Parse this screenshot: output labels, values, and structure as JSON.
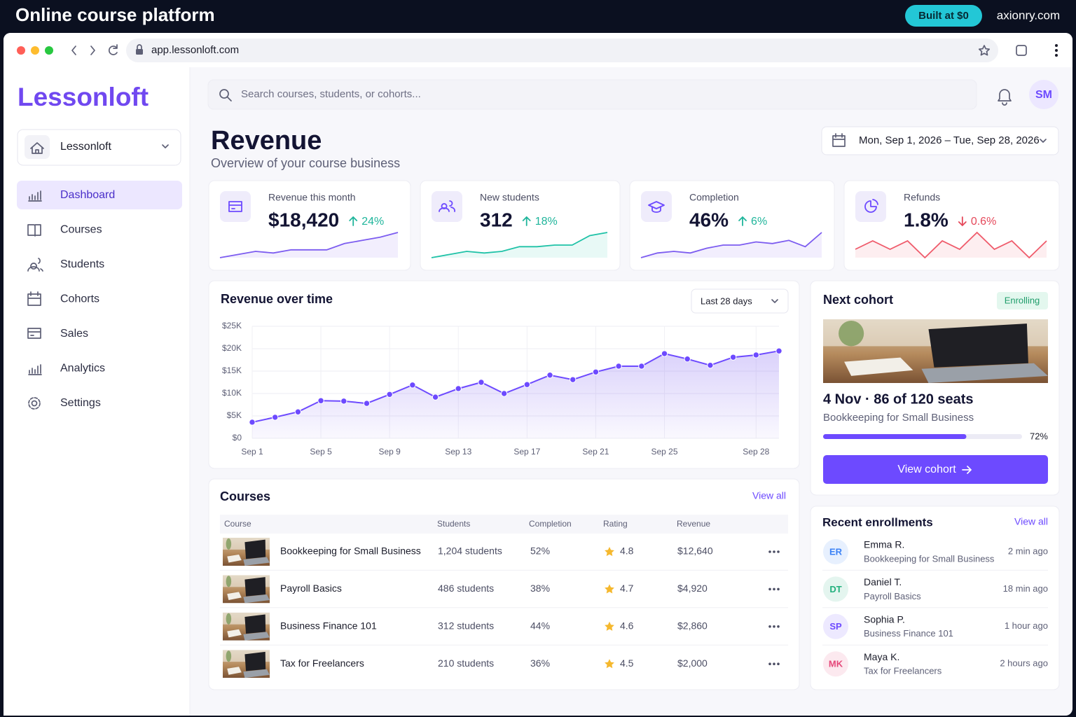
{
  "banner": {
    "title": "Online course platform",
    "badge": "Built at $0",
    "site": "axionry.com"
  },
  "browser": {
    "url": "app.lessonloft.com"
  },
  "sidebar": {
    "brand": "Lessonloft",
    "workspace": "Lessonloft",
    "nav": [
      "Dashboard",
      "Courses",
      "Students",
      "Cohorts",
      "Sales",
      "Analytics",
      "Settings"
    ],
    "active": 0
  },
  "topbar": {
    "search_placeholder": "Search courses, students, or cohorts...",
    "avatar": "SM"
  },
  "header": {
    "title": "Revenue",
    "subtitle": "Overview of your course business",
    "date_range": "Mon, Sep 1, 2026 – Tue, Sep 28, 2026"
  },
  "kpis": [
    {
      "label": "Revenue this month",
      "value": "$18,420",
      "change": "24%",
      "direction": "up",
      "color": "#7c5cf0",
      "trend": [
        2,
        4,
        6,
        5,
        7,
        7,
        7,
        11,
        13,
        15,
        18
      ]
    },
    {
      "label": "New students",
      "value": "312",
      "change": "18%",
      "direction": "up",
      "color": "#1fc2a7",
      "trend": [
        2,
        4,
        6,
        5,
        6,
        9,
        9,
        10,
        10,
        16,
        18
      ]
    },
    {
      "label": "Completion",
      "value": "46%",
      "change": "6%",
      "direction": "up",
      "color": "#7c5cf0",
      "trend": [
        2,
        5,
        6,
        5,
        8,
        10,
        10,
        12,
        11,
        13,
        9,
        18
      ]
    },
    {
      "label": "Refunds",
      "value": "1.8%",
      "change": "0.6%",
      "direction": "down",
      "color": "#ef5b6b",
      "trend": [
        8,
        9,
        8,
        9,
        7,
        9,
        8,
        10,
        8,
        9,
        7,
        9
      ]
    }
  ],
  "chart_data": {
    "type": "line",
    "title": "Revenue over time",
    "range_select": "Last 28 days",
    "categories": [
      "Sep 1",
      null,
      null,
      "Sep 5",
      null,
      null,
      "Sep 9",
      null,
      null,
      "Sep 13",
      null,
      null,
      "Sep 17",
      null,
      null,
      "Sep 21",
      null,
      null,
      "Sep 25",
      null,
      null,
      null,
      "Sep 28",
      null
    ],
    "values": [
      3600,
      4700,
      5900,
      8400,
      8300,
      7800,
      9800,
      11900,
      9200,
      11100,
      12500,
      10000,
      12000,
      14100,
      13100,
      14800,
      16100,
      16100,
      18900,
      17700,
      16300,
      18100,
      18600,
      19500
    ],
    "color": "#6d4aff",
    "ylim": [
      0,
      25000
    ],
    "yticks": [
      {
        "value": 0,
        "label": "$0"
      },
      {
        "value": 5000,
        "label": "$5K"
      },
      {
        "value": 10000,
        "label": "$10K"
      },
      {
        "value": 15000,
        "label": "$15K"
      },
      {
        "value": 20000,
        "label": "$20K"
      },
      {
        "value": 25000,
        "label": "$25K"
      }
    ],
    "grid": true
  },
  "courses": {
    "title": "Courses",
    "view_all": "View all",
    "columns": [
      "Course",
      "Students",
      "Completion",
      "Rating",
      "Revenue"
    ],
    "rows": [
      {
        "name": "Bookkeeping for Small Business",
        "students": "1,204 students",
        "completion": "52%",
        "rating": 4.8,
        "revenue": "$12,640"
      },
      {
        "name": "Payroll Basics",
        "students": "486 students",
        "completion": "38%",
        "rating": 4.7,
        "revenue": "$4,920"
      },
      {
        "name": "Business Finance 101",
        "students": "312 students",
        "completion": "44%",
        "rating": 4.6,
        "revenue": "$2,860"
      },
      {
        "name": "Tax for Freelancers",
        "students": "210 students",
        "completion": "36%",
        "rating": 4.5,
        "revenue": "$2,000"
      }
    ]
  },
  "next_cohort": {
    "title": "Next cohort",
    "status": "Enrolling",
    "headline": "4 Nov · 86 of 120 seats",
    "course": "Bookkeeping for Small Business",
    "progress": {
      "value": 72,
      "label": "72%"
    },
    "button": "View cohort"
  },
  "enrollments": {
    "title": "Recent enrollments",
    "view_all": "View all",
    "items": [
      {
        "initials": "ER",
        "name": "Emma R.",
        "course": "Bookkeeping for Small Business",
        "time": "2 min ago",
        "color": "#3b82f6"
      },
      {
        "initials": "DT",
        "name": "Daniel T.",
        "course": "Payroll Basics",
        "time": "18 min ago",
        "color": "#22b07d"
      },
      {
        "initials": "SP",
        "name": "Sophia P.",
        "course": "Business Finance 101",
        "time": "1 hour ago",
        "color": "#6d4aff"
      },
      {
        "initials": "MK",
        "name": "Maya K.",
        "course": "Tax for Freelancers",
        "time": "2 hours ago",
        "color": "#e5487a"
      }
    ]
  }
}
